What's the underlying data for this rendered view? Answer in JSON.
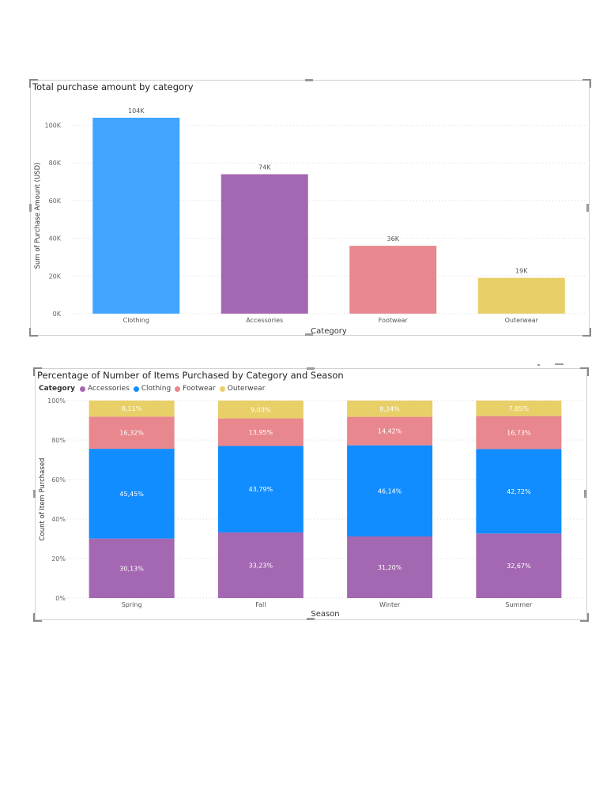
{
  "chart_data": [
    {
      "type": "bar",
      "title": "Total purchase amount by category",
      "xlabel": "Category",
      "ylabel": "Sum of Purchase Amount (USD)",
      "categories": [
        "Clothing",
        "Accessories",
        "Footwear",
        "Outerwear"
      ],
      "values": [
        104000,
        74000,
        36000,
        19000
      ],
      "data_labels": [
        "104K",
        "74K",
        "36K",
        "19K"
      ],
      "colors": [
        "#41a5ff",
        "#a467b1",
        "#e8878d",
        "#e8cf68"
      ],
      "yticks": [
        0,
        20000,
        40000,
        60000,
        80000,
        100000
      ],
      "ytick_labels": [
        "0K",
        "20K",
        "40K",
        "60K",
        "80K",
        "100K"
      ],
      "ylim": [
        0,
        104000
      ],
      "grid": true
    },
    {
      "type": "bar",
      "stacked": "percent",
      "title": "Percentage of Number of Items Purchased by Category and Season",
      "xlabel": "Season",
      "ylabel": "Count of Item Purchased",
      "categories": [
        "Spring",
        "Fall",
        "Winter",
        "Summer"
      ],
      "legend_title": "Category",
      "legend_position": "top-left",
      "series": [
        {
          "name": "Accessories",
          "color": "#a467b1",
          "values": [
            30.13,
            33.23,
            31.2,
            32.67
          ],
          "labels": [
            "30,13%",
            "33,23%",
            "31,20%",
            "32,67%"
          ]
        },
        {
          "name": "Clothing",
          "color": "#118dff",
          "values": [
            45.45,
            43.79,
            46.14,
            42.72
          ],
          "labels": [
            "45,45%",
            "43,79%",
            "46,14%",
            "42,72%"
          ]
        },
        {
          "name": "Footwear",
          "color": "#e8878d",
          "values": [
            16.32,
            13.95,
            14.42,
            16.73
          ],
          "labels": [
            "16,32%",
            "13,95%",
            "14,42%",
            "16,73%"
          ]
        },
        {
          "name": "Outerwear",
          "color": "#e8cf68",
          "values": [
            8.11,
            9.03,
            8.24,
            7.85
          ],
          "labels": [
            "8,11%",
            "9,03%",
            "8,24%",
            "7,85%"
          ]
        }
      ],
      "yticks": [
        0,
        20,
        40,
        60,
        80,
        100
      ],
      "ytick_labels": [
        "0%",
        "20%",
        "40%",
        "60%",
        "80%",
        "100%"
      ],
      "ylim": [
        0,
        100
      ],
      "grid": true
    }
  ]
}
